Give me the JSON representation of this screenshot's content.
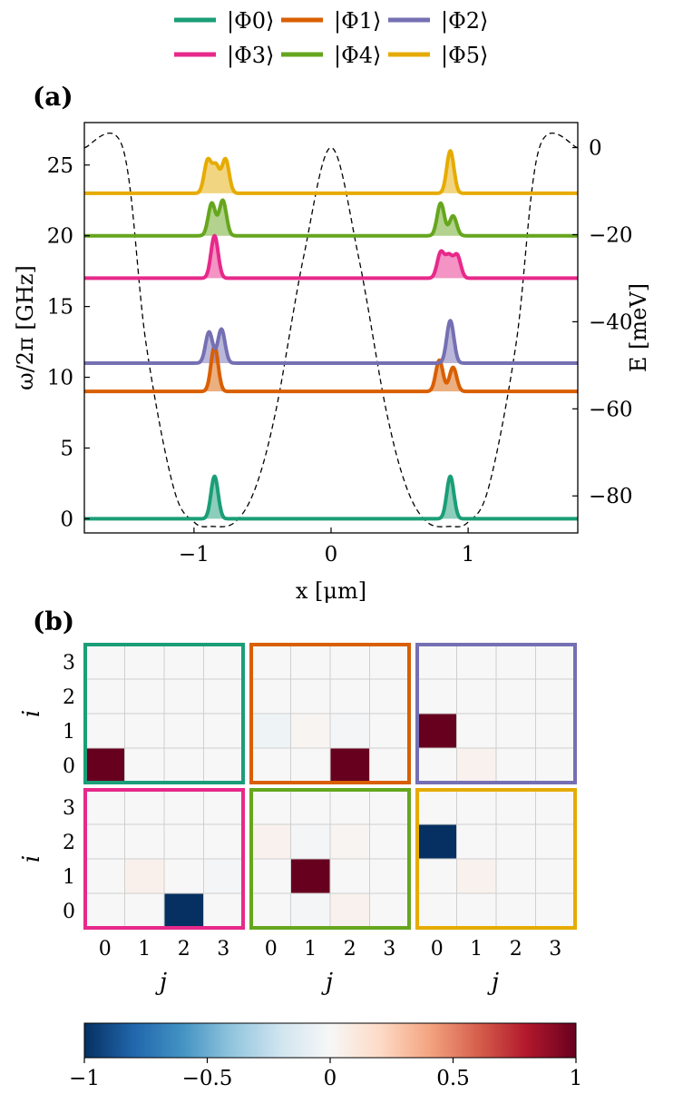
{
  "legend": [
    {
      "label": "|Φ0⟩",
      "color": "#1b9e77"
    },
    {
      "label": "|Φ1⟩",
      "color": "#d95f02"
    },
    {
      "label": "|Φ2⟩",
      "color": "#7570b3"
    },
    {
      "label": "|Φ3⟩",
      "color": "#e7298a"
    },
    {
      "label": "|Φ4⟩",
      "color": "#66a61e"
    },
    {
      "label": "|Φ5⟩",
      "color": "#e6ab02"
    }
  ],
  "panel_a": {
    "label": "(a)",
    "ylabel_left": "ω/2π [GHz]",
    "ylabel_right": "E [meV]",
    "xlabel": "x [μm]"
  },
  "panel_b": {
    "label": "(b)",
    "ylabel": "i",
    "xlabel": "j"
  },
  "chart_data": [
    {
      "type": "line",
      "panel": "a",
      "xlim": [
        -1.8,
        1.8
      ],
      "ylim_left": [
        -1,
        28
      ],
      "ylim_right_meV": [
        -88.5,
        5.75
      ],
      "x_ticks": [
        -1,
        0,
        1
      ],
      "y_ticks_left": [
        0,
        5,
        10,
        15,
        20,
        25
      ],
      "y_ticks_right": [
        0,
        -20,
        -40,
        -60,
        -80
      ],
      "potential": {
        "style": "dashed",
        "x": [
          -1.8,
          -1.52,
          -1.35,
          -1.15,
          -1.0,
          -0.87,
          -0.7,
          -0.55,
          -0.4,
          -0.2,
          0,
          0.2,
          0.4,
          0.55,
          0.7,
          0.87,
          1.0,
          1.15,
          1.35,
          1.52,
          1.8
        ],
        "E_meV": [
          0,
          0,
          -45,
          -78,
          -86,
          -87,
          -86,
          -78,
          -60,
          -25,
          0,
          -25,
          -60,
          -78,
          -86,
          -87,
          -86,
          -78,
          -45,
          0,
          0
        ]
      },
      "series": [
        {
          "name": "|Φ0⟩",
          "energy_GHz": 0,
          "peaks": [
            {
              "x": -0.85,
              "height": 3.0
            },
            {
              "x": 0.87,
              "height": 3.0
            }
          ]
        },
        {
          "name": "|Φ1⟩",
          "energy_GHz": 9,
          "peaks": [
            {
              "x": -0.85,
              "height": 3.2
            },
            {
              "x": 0.79,
              "height": 2.2
            },
            {
              "x": 0.89,
              "height": 1.7
            }
          ]
        },
        {
          "name": "|Φ2⟩",
          "energy_GHz": 11,
          "peaks": [
            {
              "x": -0.89,
              "height": 2.2
            },
            {
              "x": -0.8,
              "height": 2.4
            },
            {
              "x": 0.87,
              "height": 3.0
            }
          ]
        },
        {
          "name": "|Φ3⟩",
          "energy_GHz": 17,
          "peaks": [
            {
              "x": -0.85,
              "height": 3.0
            },
            {
              "x": 0.8,
              "height": 1.8
            },
            {
              "x": 0.86,
              "height": 1.5
            },
            {
              "x": 0.92,
              "height": 1.6
            }
          ]
        },
        {
          "name": "|Φ4⟩",
          "energy_GHz": 20,
          "peaks": [
            {
              "x": -0.87,
              "height": 2.3
            },
            {
              "x": -0.79,
              "height": 2.5
            },
            {
              "x": 0.8,
              "height": 2.3
            },
            {
              "x": 0.89,
              "height": 1.4
            }
          ]
        },
        {
          "name": "|Φ5⟩",
          "energy_GHz": 23,
          "peaks": [
            {
              "x": -0.9,
              "height": 2.3
            },
            {
              "x": -0.84,
              "height": 1.9
            },
            {
              "x": -0.77,
              "height": 2.4
            },
            {
              "x": 0.87,
              "height": 3.0
            }
          ]
        }
      ]
    },
    {
      "type": "heatmap",
      "panel": "b",
      "vlim": [
        -1,
        1
      ],
      "colormap": "RdBu_r",
      "x_ticks": [
        0,
        1,
        2,
        3
      ],
      "y_ticks": [
        0,
        1,
        2,
        3
      ],
      "matrices": [
        {
          "series": "|Φ0⟩",
          "cells": [
            [
              1,
              0,
              0,
              0
            ],
            [
              0,
              0,
              0,
              0
            ],
            [
              0,
              0,
              0,
              0
            ],
            [
              0,
              0,
              0,
              0
            ]
          ]
        },
        {
          "series": "|Φ1⟩",
          "cells": [
            [
              0,
              0,
              1,
              0
            ],
            [
              -0.05,
              0.02,
              -0.02,
              0
            ],
            [
              0,
              0,
              0,
              0
            ],
            [
              0,
              0,
              0,
              0
            ]
          ]
        },
        {
          "series": "|Φ2⟩",
          "cells": [
            [
              0,
              0.04,
              0,
              0
            ],
            [
              1,
              0,
              0,
              0
            ],
            [
              0,
              0,
              0,
              0
            ],
            [
              0,
              0,
              0,
              0
            ]
          ]
        },
        {
          "series": "|Φ3⟩",
          "cells": [
            [
              0,
              0,
              -1,
              0
            ],
            [
              0,
              0.05,
              0,
              -0.02
            ],
            [
              0,
              0,
              0,
              0
            ],
            [
              0,
              0,
              0,
              0
            ]
          ]
        },
        {
          "series": "|Φ4⟩",
          "cells": [
            [
              0,
              -0.02,
              0.04,
              0
            ],
            [
              0,
              1,
              0,
              0
            ],
            [
              0.04,
              -0.02,
              0.02,
              0
            ],
            [
              0,
              0,
              0,
              0
            ]
          ]
        },
        {
          "series": "|Φ5⟩",
          "cells": [
            [
              0,
              0,
              0,
              0
            ],
            [
              0,
              0.04,
              0,
              0
            ],
            [
              -1,
              0,
              0,
              0
            ],
            [
              0,
              0,
              0,
              0
            ]
          ]
        }
      ]
    },
    {
      "type": "colorbar",
      "range": [
        -1,
        1
      ],
      "ticks": [
        -1,
        -0.5,
        0,
        0.5,
        1
      ],
      "tick_labels": [
        "−1",
        "−0.5",
        "0",
        "0.5",
        "1"
      ]
    }
  ]
}
